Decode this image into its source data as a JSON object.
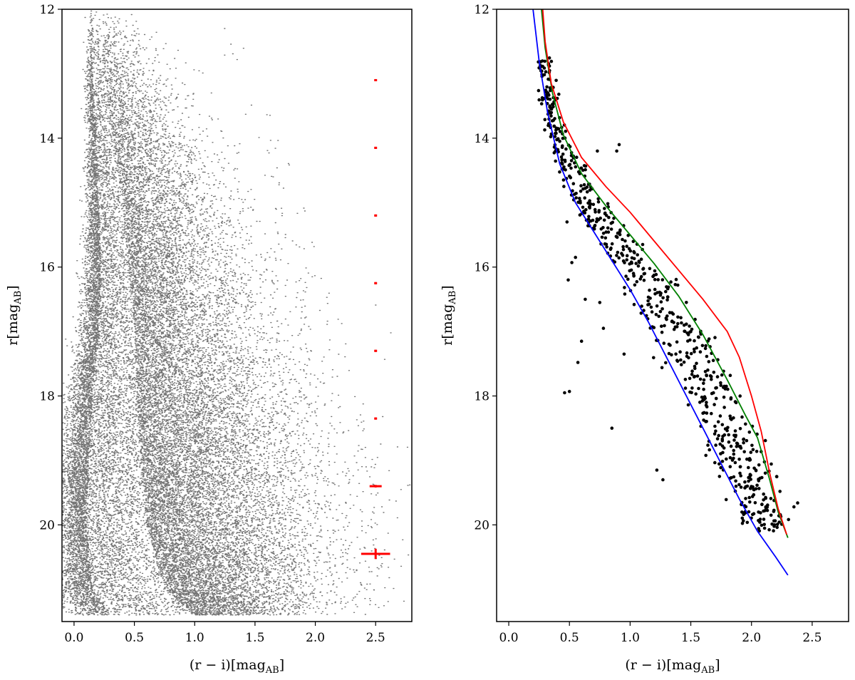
{
  "chart_data": [
    {
      "type": "scatter",
      "panel": "left",
      "xlabel": "(r − i)[mag",
      "xlabel_sub": "AB",
      "xlabel_end": "]",
      "ylabel": "r[mag",
      "ylabel_sub": "AB",
      "ylabel_end": "]",
      "xlim": [
        -0.1,
        2.8
      ],
      "ylim": [
        21.5,
        12
      ],
      "y_inverted": true,
      "xticks": [
        0.0,
        0.5,
        1.0,
        1.5,
        2.0,
        2.5
      ],
      "xtick_labels": [
        "0.0",
        "0.5",
        "1.0",
        "1.5",
        "2.0",
        "2.5"
      ],
      "yticks": [
        12,
        14,
        16,
        18,
        20
      ],
      "ytick_labels": [
        "12",
        "14",
        "16",
        "18",
        "20"
      ],
      "grid": false,
      "point_color": "#000000",
      "density_model": {
        "description": "dense field-star cloud; outline of populated region per magnitude",
        "r_bins": [
          12.0,
          13.0,
          14.0,
          15.0,
          16.0,
          17.0,
          18.0,
          19.0,
          20.0,
          21.0,
          21.4
        ],
        "left_edge": [
          0.15,
          0.15,
          0.18,
          0.2,
          0.22,
          0.2,
          0.15,
          0.12,
          0.1,
          0.15,
          0.3
        ],
        "peak": [
          0.22,
          0.25,
          0.32,
          0.4,
          0.45,
          0.5,
          0.52,
          0.55,
          0.6,
          0.75,
          1.0
        ],
        "right_edge": [
          0.5,
          0.7,
          0.9,
          1.1,
          1.3,
          1.45,
          1.6,
          1.75,
          1.85,
          1.85,
          1.75
        ]
      },
      "error_bars": {
        "color": "#ff0000",
        "x": 2.5,
        "r": [
          13.1,
          14.15,
          15.2,
          16.25,
          17.3,
          18.35,
          19.4,
          20.45
        ],
        "x_err": [
          0.0,
          0.0,
          0.0,
          0.0,
          0.0,
          0.0,
          0.05,
          0.12
        ],
        "r_err": [
          0.0,
          0.0,
          0.0,
          0.0,
          0.0,
          0.0,
          0.02,
          0.08
        ]
      }
    },
    {
      "type": "scatter",
      "panel": "right",
      "xlabel": "(r − i)[mag",
      "xlabel_sub": "AB",
      "xlabel_end": "]",
      "ylabel": "r[mag",
      "ylabel_sub": "AB",
      "ylabel_end": "]",
      "xlim": [
        -0.1,
        2.8
      ],
      "ylim": [
        21.5,
        12
      ],
      "y_inverted": true,
      "xticks": [
        0.0,
        0.5,
        1.0,
        1.5,
        2.0,
        2.5
      ],
      "xtick_labels": [
        "0.0",
        "0.5",
        "1.0",
        "1.5",
        "2.0",
        "2.5"
      ],
      "yticks": [
        12,
        14,
        16,
        18,
        20
      ],
      "ytick_labels": [
        "12",
        "14",
        "16",
        "18",
        "20"
      ],
      "grid": false,
      "point_color": "#000000",
      "sequence_model": {
        "description": "member stars scattered around the blue-to-green isochrones",
        "r_min": 12.7,
        "r_max": 20.1,
        "count": 700
      },
      "outliers": {
        "x": [
          0.46,
          0.5,
          0.57,
          0.52,
          0.55,
          0.49,
          0.6,
          0.48,
          0.63,
          0.85,
          0.78,
          1.22,
          1.27,
          0.95,
          0.75,
          0.91,
          0.89,
          0.73,
          2.35,
          2.38
        ],
        "y": [
          17.95,
          17.93,
          17.48,
          15.93,
          15.85,
          16.2,
          17.15,
          15.3,
          16.5,
          18.5,
          16.95,
          19.15,
          19.3,
          17.35,
          16.55,
          14.1,
          14.2,
          14.2,
          19.72,
          19.66
        ]
      },
      "series": [
        {
          "name": "",
          "color": "#0000ff",
          "x": [
            0.2,
            0.25,
            0.32,
            0.42,
            0.55,
            0.7,
            0.85,
            1.0,
            1.15,
            1.3,
            1.45,
            1.6,
            1.75,
            1.9,
            2.05,
            2.2,
            2.3
          ],
          "y": [
            12.0,
            12.8,
            13.6,
            14.4,
            15.0,
            15.45,
            15.9,
            16.35,
            16.85,
            17.4,
            17.95,
            18.5,
            19.05,
            19.6,
            20.1,
            20.5,
            20.78
          ]
        },
        {
          "name": "",
          "color": "#008000",
          "x": [
            0.27,
            0.3,
            0.36,
            0.45,
            0.6,
            0.8,
            1.0,
            1.2,
            1.4,
            1.6,
            1.8,
            1.95,
            2.05,
            2.15,
            2.22,
            2.3
          ],
          "y": [
            12.0,
            12.6,
            13.3,
            13.95,
            14.55,
            15.05,
            15.5,
            15.95,
            16.45,
            17.05,
            17.75,
            18.3,
            18.65,
            19.3,
            19.8,
            20.2
          ]
        },
        {
          "name": "",
          "color": "#ff0000",
          "x": [
            0.28,
            0.3,
            0.35,
            0.45,
            0.6,
            0.8,
            1.0,
            1.2,
            1.4,
            1.6,
            1.8,
            1.9,
            2.0,
            2.08,
            2.15,
            2.22,
            2.29
          ],
          "y": [
            12.0,
            12.5,
            13.15,
            13.75,
            14.3,
            14.75,
            15.15,
            15.6,
            16.05,
            16.5,
            17.0,
            17.4,
            18.0,
            18.55,
            19.2,
            19.75,
            20.15
          ]
        }
      ]
    }
  ]
}
